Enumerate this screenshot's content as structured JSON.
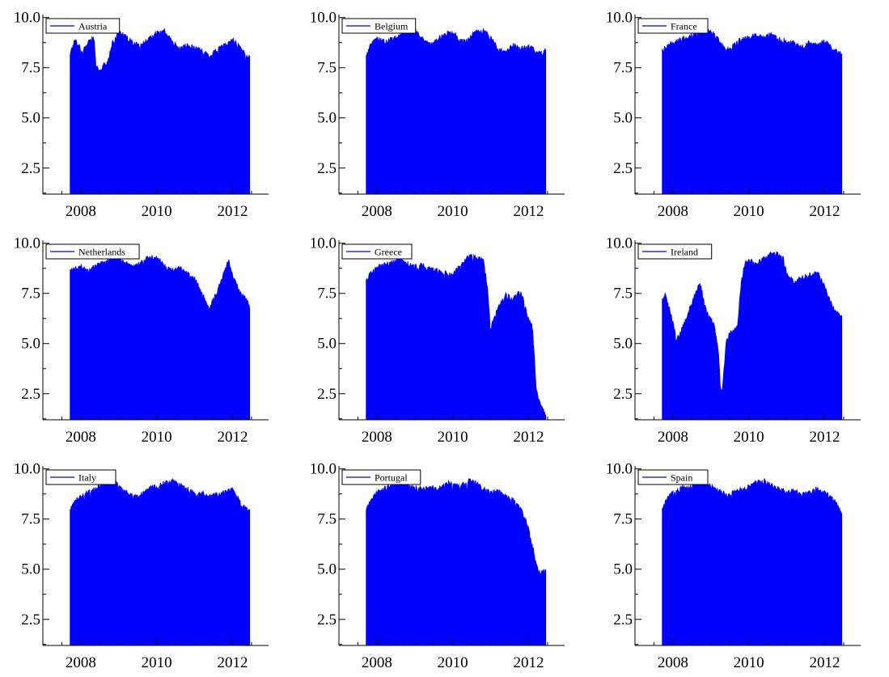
{
  "colors": {
    "series": "#0000ff",
    "axis": "#000000",
    "background": "#ffffff"
  },
  "chart_data": [
    {
      "type": "area",
      "legend": "Austria",
      "legend_placement": "top-left",
      "x": [
        2007.72,
        2007.85,
        2007.95,
        2008.05,
        2008.2,
        2008.35,
        2008.4,
        2008.5,
        2008.6,
        2008.7,
        2008.85,
        2009.0,
        2009.2,
        2009.4,
        2009.6,
        2009.8,
        2010.0,
        2010.2,
        2010.4,
        2010.6,
        2010.8,
        2011.0,
        2011.2,
        2011.4,
        2011.6,
        2011.8,
        2012.0,
        2012.2,
        2012.35,
        2012.45
      ],
      "y": [
        8.2,
        8.9,
        8.6,
        8.3,
        8.8,
        9.0,
        7.5,
        7.3,
        7.6,
        7.7,
        8.8,
        9.3,
        9.0,
        8.7,
        8.6,
        8.9,
        9.2,
        9.3,
        8.8,
        8.4,
        8.6,
        8.5,
        8.3,
        8.1,
        8.4,
        8.6,
        8.9,
        8.5,
        8.1,
        8.1
      ],
      "xticks": [
        2008,
        2010,
        2012
      ],
      "yticks": [
        2.5,
        5.0,
        7.5,
        10.0
      ],
      "xlim": [
        2007.0,
        2012.95
      ],
      "ylim": [
        1.2,
        10.15
      ]
    },
    {
      "type": "area",
      "legend": "Belgium",
      "legend_placement": "top-left",
      "x": [
        2007.72,
        2007.85,
        2008.0,
        2008.2,
        2008.4,
        2008.6,
        2008.8,
        2009.0,
        2009.2,
        2009.4,
        2009.6,
        2009.8,
        2010.0,
        2010.2,
        2010.4,
        2010.6,
        2010.8,
        2011.0,
        2011.2,
        2011.4,
        2011.6,
        2011.8,
        2012.0,
        2012.2,
        2012.35,
        2012.45
      ],
      "y": [
        8.2,
        8.7,
        8.9,
        8.8,
        8.9,
        9.1,
        9.3,
        9.4,
        9.0,
        8.6,
        8.9,
        9.2,
        9.3,
        8.8,
        8.9,
        9.3,
        9.3,
        9.0,
        8.4,
        8.3,
        8.6,
        8.5,
        8.6,
        8.3,
        8.2,
        8.4
      ],
      "xticks": [
        2008,
        2010,
        2012
      ],
      "yticks": [
        2.5,
        5.0,
        7.5,
        10.0
      ],
      "xlim": [
        2007.0,
        2012.95
      ],
      "ylim": [
        1.2,
        10.15
      ]
    },
    {
      "type": "area",
      "legend": "France",
      "legend_placement": "top-left",
      "x": [
        2007.72,
        2007.85,
        2008.0,
        2008.2,
        2008.4,
        2008.6,
        2008.8,
        2009.0,
        2009.2,
        2009.4,
        2009.6,
        2009.8,
        2010.0,
        2010.2,
        2010.4,
        2010.6,
        2010.8,
        2011.0,
        2011.2,
        2011.4,
        2011.6,
        2011.8,
        2012.0,
        2012.2,
        2012.35,
        2012.45
      ],
      "y": [
        8.3,
        8.6,
        8.7,
        8.9,
        9.0,
        9.2,
        9.5,
        9.3,
        8.9,
        8.3,
        8.6,
        8.9,
        9.0,
        9.1,
        9.0,
        9.2,
        8.9,
        8.8,
        8.7,
        8.5,
        8.8,
        8.6,
        8.8,
        8.5,
        8.3,
        8.1
      ],
      "xticks": [
        2008,
        2010,
        2012
      ],
      "yticks": [
        2.5,
        5.0,
        7.5,
        10.0
      ],
      "xlim": [
        2007.0,
        2012.95
      ],
      "ylim": [
        1.2,
        10.15
      ]
    },
    {
      "type": "area",
      "legend": "Netherlands",
      "legend_placement": "top-left",
      "x": [
        2007.72,
        2007.85,
        2008.0,
        2008.2,
        2008.4,
        2008.6,
        2008.8,
        2009.0,
        2009.2,
        2009.4,
        2009.6,
        2009.8,
        2010.0,
        2010.2,
        2010.4,
        2010.6,
        2010.8,
        2011.0,
        2011.2,
        2011.3,
        2011.4,
        2011.6,
        2011.8,
        2011.9,
        2012.0,
        2012.2,
        2012.35,
        2012.45
      ],
      "y": [
        8.6,
        8.7,
        8.8,
        8.6,
        8.9,
        9.0,
        9.2,
        9.3,
        9.0,
        8.8,
        9.0,
        9.3,
        9.3,
        8.9,
        8.6,
        8.8,
        8.5,
        8.2,
        7.5,
        7.0,
        6.8,
        7.6,
        8.7,
        9.1,
        8.4,
        7.5,
        7.2,
        6.8
      ],
      "xticks": [
        2008,
        2010,
        2012
      ],
      "yticks": [
        2.5,
        5.0,
        7.5,
        10.0
      ],
      "xlim": [
        2007.0,
        2012.95
      ],
      "ylim": [
        1.2,
        10.15
      ]
    },
    {
      "type": "area",
      "legend": "Greece",
      "legend_placement": "top-left",
      "x": [
        2007.72,
        2007.85,
        2008.0,
        2008.2,
        2008.4,
        2008.6,
        2008.8,
        2009.0,
        2009.2,
        2009.4,
        2009.6,
        2009.8,
        2010.0,
        2010.2,
        2010.4,
        2010.6,
        2010.8,
        2010.9,
        2011.0,
        2011.2,
        2011.4,
        2011.6,
        2011.8,
        2011.9,
        2012.0,
        2012.1,
        2012.2,
        2012.3,
        2012.45
      ],
      "y": [
        8.1,
        8.5,
        8.8,
        8.9,
        9.0,
        9.3,
        9.0,
        8.8,
        8.9,
        8.7,
        8.6,
        8.5,
        8.4,
        8.9,
        9.3,
        9.3,
        9.2,
        8.0,
        5.8,
        6.8,
        7.4,
        7.2,
        7.6,
        6.8,
        6.2,
        5.8,
        2.8,
        2.0,
        1.5
      ],
      "xticks": [
        2008,
        2010,
        2012
      ],
      "yticks": [
        2.5,
        5.0,
        7.5,
        10.0
      ],
      "xlim": [
        2007.0,
        2012.95
      ],
      "ylim": [
        1.2,
        10.15
      ]
    },
    {
      "type": "area",
      "legend": "Ireland",
      "legend_placement": "top-left",
      "x": [
        2007.72,
        2007.8,
        2007.9,
        2008.0,
        2008.1,
        2008.2,
        2008.3,
        2008.4,
        2008.5,
        2008.6,
        2008.7,
        2008.8,
        2008.9,
        2009.0,
        2009.1,
        2009.2,
        2009.25,
        2009.3,
        2009.4,
        2009.5,
        2009.6,
        2009.7,
        2009.8,
        2009.9,
        2010.0,
        2010.2,
        2010.4,
        2010.6,
        2010.8,
        2010.9,
        2011.0,
        2011.2,
        2011.4,
        2011.6,
        2011.8,
        2012.0,
        2012.2,
        2012.35,
        2012.45
      ],
      "y": [
        7.2,
        7.5,
        6.8,
        6.0,
        5.2,
        5.5,
        6.0,
        6.5,
        7.0,
        7.5,
        8.0,
        7.4,
        6.5,
        6.2,
        5.8,
        4.5,
        2.8,
        2.5,
        5.0,
        5.5,
        5.6,
        5.8,
        8.0,
        9.0,
        9.1,
        9.0,
        9.2,
        9.5,
        9.4,
        9.3,
        8.5,
        8.0,
        8.3,
        8.4,
        8.6,
        7.8,
        6.8,
        6.5,
        6.3
      ],
      "xticks": [
        2008,
        2010,
        2012
      ],
      "yticks": [
        2.5,
        5.0,
        7.5,
        10.0
      ],
      "xlim": [
        2007.0,
        2012.95
      ],
      "ylim": [
        1.2,
        10.15
      ]
    },
    {
      "type": "area",
      "legend": "Italy",
      "legend_placement": "top-left",
      "x": [
        2007.72,
        2007.85,
        2008.0,
        2008.2,
        2008.4,
        2008.6,
        2008.8,
        2009.0,
        2009.2,
        2009.4,
        2009.6,
        2009.8,
        2010.0,
        2010.2,
        2010.4,
        2010.6,
        2010.8,
        2011.0,
        2011.2,
        2011.4,
        2011.6,
        2011.8,
        2012.0,
        2012.2,
        2012.35,
        2012.45
      ],
      "y": [
        8.0,
        8.4,
        8.6,
        8.8,
        9.0,
        9.3,
        9.5,
        9.1,
        8.8,
        8.6,
        8.7,
        9.0,
        9.1,
        9.3,
        9.4,
        9.2,
        9.0,
        8.7,
        8.8,
        8.6,
        8.7,
        8.8,
        9.0,
        8.3,
        8.0,
        7.9
      ],
      "xticks": [
        2008,
        2010,
        2012
      ],
      "yticks": [
        2.5,
        5.0,
        7.5,
        10.0
      ],
      "xlim": [
        2007.0,
        2012.95
      ],
      "ylim": [
        1.2,
        10.15
      ]
    },
    {
      "type": "area",
      "legend": "Portugal",
      "legend_placement": "top-left",
      "x": [
        2007.72,
        2007.85,
        2008.0,
        2008.2,
        2008.4,
        2008.6,
        2008.8,
        2009.0,
        2009.2,
        2009.4,
        2009.6,
        2009.8,
        2010.0,
        2010.2,
        2010.4,
        2010.6,
        2010.8,
        2011.0,
        2011.2,
        2011.4,
        2011.6,
        2011.8,
        2011.9,
        2012.0,
        2012.1,
        2012.2,
        2012.3,
        2012.45
      ],
      "y": [
        8.0,
        8.4,
        8.8,
        9.0,
        9.2,
        9.3,
        9.2,
        9.1,
        9.0,
        9.1,
        9.0,
        9.2,
        9.3,
        9.1,
        9.4,
        9.3,
        9.0,
        8.8,
        8.9,
        8.6,
        8.4,
        8.0,
        7.5,
        7.0,
        6.2,
        5.2,
        4.8,
        4.9
      ],
      "xticks": [
        2008,
        2010,
        2012
      ],
      "yticks": [
        2.5,
        5.0,
        7.5,
        10.0
      ],
      "xlim": [
        2007.0,
        2012.95
      ],
      "ylim": [
        1.2,
        10.15
      ]
    },
    {
      "type": "area",
      "legend": "Spain",
      "legend_placement": "top-left",
      "x": [
        2007.72,
        2007.85,
        2008.0,
        2008.2,
        2008.4,
        2008.6,
        2008.8,
        2009.0,
        2009.2,
        2009.4,
        2009.6,
        2009.8,
        2010.0,
        2010.2,
        2010.4,
        2010.6,
        2010.8,
        2011.0,
        2011.2,
        2011.4,
        2011.6,
        2011.8,
        2012.0,
        2012.2,
        2012.35,
        2012.45
      ],
      "y": [
        8.1,
        8.5,
        8.8,
        9.0,
        9.1,
        9.2,
        9.3,
        9.1,
        8.9,
        8.7,
        8.8,
        9.0,
        9.1,
        9.3,
        9.4,
        9.2,
        9.0,
        8.8,
        8.9,
        8.7,
        8.8,
        9.0,
        8.8,
        8.5,
        8.1,
        7.8
      ],
      "xticks": [
        2008,
        2010,
        2012
      ],
      "yticks": [
        2.5,
        5.0,
        7.5,
        10.0
      ],
      "xlim": [
        2007.0,
        2012.95
      ],
      "ylim": [
        1.2,
        10.15
      ]
    }
  ]
}
